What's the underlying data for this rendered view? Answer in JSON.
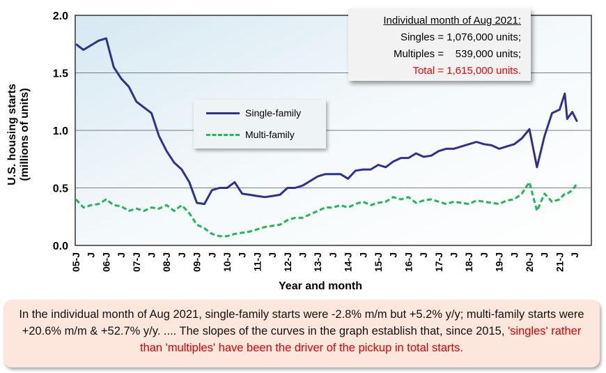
{
  "chart_data": {
    "type": "line",
    "title": "",
    "xlabel": "Year and month",
    "ylabel": "U.S. housing starts (millions of units)",
    "ylim": [
      0,
      2.0
    ],
    "yticks": [
      "0.0",
      "0.5",
      "1.0",
      "1.5",
      "2.0"
    ],
    "xticks": [
      "05-J",
      "J",
      "06-J",
      "J",
      "07-J",
      "J",
      "08-J",
      "J",
      "09-J",
      "J",
      "10-J",
      "J",
      "11-J",
      "J",
      "12-J",
      "J",
      "13-J",
      "J",
      "14-J",
      "J",
      "15-J",
      "J",
      "16-J",
      "J",
      "17-J",
      "J",
      "18-J",
      "J",
      "19-J",
      "J",
      "20-J",
      "J",
      "21-J",
      "J"
    ],
    "grid": true,
    "legend_placement": "center-left",
    "x": [
      2005,
      2005.25,
      2005.5,
      2005.75,
      2006,
      2006.25,
      2006.5,
      2006.75,
      2007,
      2007.25,
      2007.5,
      2007.75,
      2008,
      2008.25,
      2008.5,
      2008.75,
      2009,
      2009.25,
      2009.5,
      2009.75,
      2010,
      2010.25,
      2010.5,
      2010.75,
      2011,
      2011.25,
      2011.5,
      2011.75,
      2012,
      2012.25,
      2012.5,
      2012.75,
      2013,
      2013.25,
      2013.5,
      2013.75,
      2014,
      2014.25,
      2014.5,
      2014.75,
      2015,
      2015.25,
      2015.5,
      2015.75,
      2016,
      2016.25,
      2016.5,
      2016.75,
      2017,
      2017.25,
      2017.5,
      2017.75,
      2018,
      2018.25,
      2018.5,
      2018.75,
      2019,
      2019.25,
      2019.5,
      2019.75,
      2020,
      2020.25,
      2020.5,
      2020.75,
      2021,
      2021.17,
      2021.25,
      2021.42,
      2021.58
    ],
    "series": [
      {
        "name": "Single-family",
        "color": "#2e3192",
        "style": "solid",
        "values": [
          1.75,
          1.7,
          1.74,
          1.78,
          1.8,
          1.55,
          1.45,
          1.38,
          1.25,
          1.2,
          1.15,
          0.95,
          0.82,
          0.72,
          0.66,
          0.55,
          0.37,
          0.36,
          0.48,
          0.5,
          0.5,
          0.55,
          0.45,
          0.44,
          0.43,
          0.42,
          0.43,
          0.44,
          0.5,
          0.5,
          0.52,
          0.56,
          0.6,
          0.62,
          0.62,
          0.62,
          0.58,
          0.65,
          0.66,
          0.66,
          0.7,
          0.68,
          0.73,
          0.76,
          0.76,
          0.8,
          0.77,
          0.78,
          0.82,
          0.84,
          0.84,
          0.86,
          0.88,
          0.9,
          0.88,
          0.87,
          0.84,
          0.86,
          0.88,
          0.93,
          1.01,
          0.68,
          0.95,
          1.15,
          1.18,
          1.32,
          1.1,
          1.16,
          1.076
        ]
      },
      {
        "name": "Multi-family",
        "color": "#1db954",
        "style": "dashed",
        "values": [
          0.4,
          0.33,
          0.35,
          0.36,
          0.4,
          0.35,
          0.34,
          0.3,
          0.32,
          0.3,
          0.33,
          0.32,
          0.35,
          0.3,
          0.35,
          0.28,
          0.18,
          0.15,
          0.1,
          0.08,
          0.08,
          0.1,
          0.11,
          0.12,
          0.14,
          0.16,
          0.17,
          0.18,
          0.22,
          0.24,
          0.24,
          0.27,
          0.3,
          0.33,
          0.33,
          0.35,
          0.33,
          0.36,
          0.38,
          0.35,
          0.37,
          0.38,
          0.42,
          0.4,
          0.42,
          0.37,
          0.39,
          0.4,
          0.38,
          0.36,
          0.38,
          0.37,
          0.36,
          0.39,
          0.38,
          0.37,
          0.36,
          0.39,
          0.4,
          0.45,
          0.55,
          0.3,
          0.45,
          0.38,
          0.4,
          0.45,
          0.45,
          0.48,
          0.539
        ]
      }
    ]
  },
  "note": {
    "title": "Individual month of Aug 2021:",
    "singles": "Singles = 1,076,000 units;",
    "multiples": "Multiples =    539,000 units;",
    "total": "Total = 1,615,000 units."
  },
  "caption": {
    "part1": "In the individual month of Aug 2021, single-family starts were -2.8% m/m but +5.2% y/y; multi-family starts were +20.6% m/m & +52.7% y/y. .... The slopes of the curves in the graph establish that, since 2015, ",
    "highlight": "'singles' rather than 'multiples' have been the driver of the pickup in total starts.",
    "part2": ""
  }
}
